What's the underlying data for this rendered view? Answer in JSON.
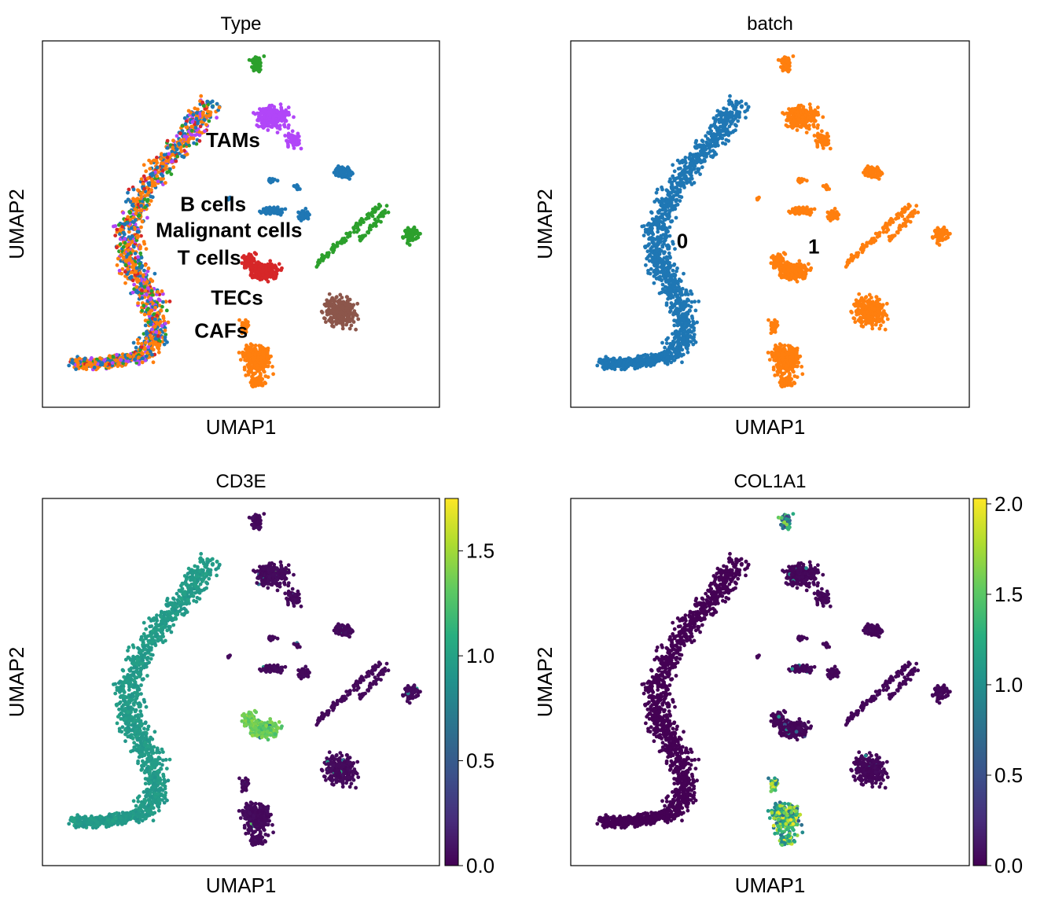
{
  "chart_data": [
    {
      "type": "scatter",
      "title": "Type",
      "xlabel": "UMAP1",
      "ylabel": "UMAP2",
      "color_by": "categorical",
      "legend_placement": "on data",
      "grid": false,
      "categories": [
        {
          "name": "TAMs",
          "color": "#b146f8"
        },
        {
          "name": "B cells",
          "color": "#1f77b4"
        },
        {
          "name": "Malignant cells",
          "color": "#2ca02c"
        },
        {
          "name": "T cells",
          "color": "#d62728"
        },
        {
          "name": "TECs",
          "color": "#8c564b"
        },
        {
          "name": "CAFs",
          "color": "#ff7f0e"
        }
      ]
    },
    {
      "type": "scatter",
      "title": "batch",
      "xlabel": "UMAP1",
      "ylabel": "UMAP2",
      "color_by": "categorical",
      "legend_placement": "on data",
      "grid": false,
      "categories": [
        {
          "name": "0",
          "color": "#1f77b4"
        },
        {
          "name": "1",
          "color": "#ff7f0e"
        }
      ]
    },
    {
      "type": "scatter",
      "title": "CD3E",
      "xlabel": "UMAP1",
      "ylabel": "UMAP2",
      "color_by": "continuous",
      "colormap": "viridis",
      "colorbar_range": [
        0,
        1.75
      ],
      "colorbar_ticks": [
        "0.0",
        "0.5",
        "1.0",
        "1.5"
      ],
      "grid": false
    },
    {
      "type": "scatter",
      "title": "COL1A1",
      "xlabel": "UMAP1",
      "ylabel": "UMAP2",
      "color_by": "continuous",
      "colormap": "viridis",
      "colorbar_range": [
        0,
        2.03
      ],
      "colorbar_ticks": [
        "0.0",
        "0.5",
        "1.0",
        "1.5",
        "2.0"
      ],
      "grid": false
    }
  ]
}
